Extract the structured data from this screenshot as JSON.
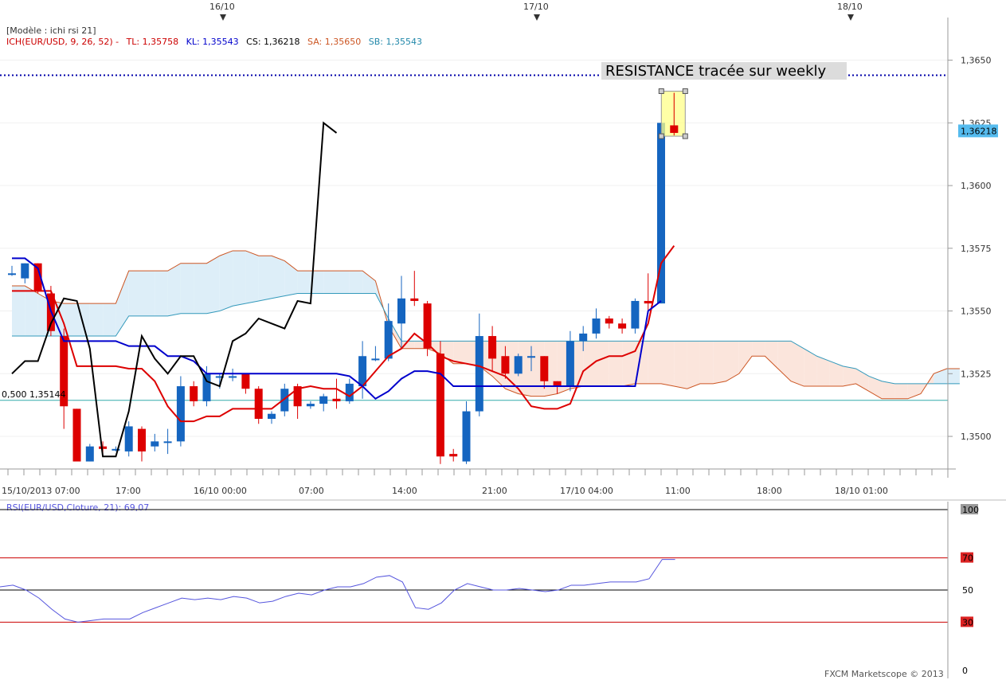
{
  "header": {
    "template": "[Modèle : ichi rsi 21]",
    "ichimoku_label": "ICH(EUR/USD, 9, 26, 52) -",
    "tl": "TL: 1,35758",
    "kl": "KL: 1,35543",
    "cs": "CS: 1,36218",
    "sa": "SA: 1,35650",
    "sb": "SB: 1,35543"
  },
  "date_markers": [
    "16/10",
    "17/10",
    "18/10"
  ],
  "annotation": "RESISTANCE tracée sur weekly",
  "fib_label": "0,500 1,35144",
  "last_price_label": "1,36218",
  "footer": "FXCM Marketscope © 2013",
  "rsi_label": "RSI(EUR/USD,Cloture, 21): 69,07",
  "colors": {
    "bull": "#1565c0",
    "bear": "#dd0000",
    "tenkan": "#dd0000",
    "kijun": "#0000cc",
    "chikou": "#000000",
    "senkou_a": "#cc5522",
    "senkou_b": "#3399bb",
    "cloud_bull": "#ddeef8",
    "cloud_bear": "#fbe5dc",
    "rsi": "#5555dd",
    "resistance": "#0000aa",
    "fib": "#33aaaa"
  },
  "chart_data": [
    {
      "type": "candlestick",
      "instrument": "EUR/USD",
      "x_tick_labels": [
        "15/10/2013 07:00",
        "17:00",
        "16/10 00:00",
        "07:00",
        "14:00",
        "21:00",
        "17/10 04:00",
        "11:00",
        "18:00",
        "18/10 01:00"
      ],
      "y_tick_labels": [
        "1,3500",
        "1,3525",
        "1,3550",
        "1,3575",
        "1,3600",
        "1,3625",
        "1,3650"
      ],
      "ylim": [
        1.3487,
        1.3667
      ],
      "resistance_level": 1.3644,
      "fib_level": 1.35144,
      "last_price": 1.36218,
      "candles": [
        {
          "o": 1.3565,
          "h": 1.3568,
          "l": 1.3564,
          "c": 1.3565
        },
        {
          "o": 1.3563,
          "h": 1.3569,
          "l": 1.3561,
          "c": 1.3569
        },
        {
          "o": 1.3569,
          "h": 1.3569,
          "l": 1.3557,
          "c": 1.3558
        },
        {
          "o": 1.3557,
          "h": 1.356,
          "l": 1.354,
          "c": 1.3542
        },
        {
          "o": 1.354,
          "h": 1.3543,
          "l": 1.3503,
          "c": 1.3512
        },
        {
          "o": 1.3511,
          "h": 1.3511,
          "l": 1.349,
          "c": 1.349
        },
        {
          "o": 1.349,
          "h": 1.3497,
          "l": 1.349,
          "c": 1.3496
        },
        {
          "o": 1.3496,
          "h": 1.3498,
          "l": 1.3493,
          "c": 1.3495
        },
        {
          "o": 1.3495,
          "h": 1.3496,
          "l": 1.3494,
          "c": 1.3495
        },
        {
          "o": 1.3494,
          "h": 1.3506,
          "l": 1.3492,
          "c": 1.3504
        },
        {
          "o": 1.3503,
          "h": 1.3504,
          "l": 1.349,
          "c": 1.3494
        },
        {
          "o": 1.3496,
          "h": 1.3501,
          "l": 1.3494,
          "c": 1.3498
        },
        {
          "o": 1.3498,
          "h": 1.3503,
          "l": 1.3493,
          "c": 1.3498
        },
        {
          "o": 1.3498,
          "h": 1.3524,
          "l": 1.3496,
          "c": 1.352
        },
        {
          "o": 1.352,
          "h": 1.3522,
          "l": 1.3512,
          "c": 1.3514
        },
        {
          "o": 1.3514,
          "h": 1.3528,
          "l": 1.3512,
          "c": 1.3525
        },
        {
          "o": 1.3524,
          "h": 1.3525,
          "l": 1.3519,
          "c": 1.3524
        },
        {
          "o": 1.3524,
          "h": 1.3527,
          "l": 1.3522,
          "c": 1.3524
        },
        {
          "o": 1.3525,
          "h": 1.3525,
          "l": 1.3517,
          "c": 1.3519
        },
        {
          "o": 1.3519,
          "h": 1.352,
          "l": 1.3505,
          "c": 1.3507
        },
        {
          "o": 1.3507,
          "h": 1.351,
          "l": 1.3505,
          "c": 1.3509
        },
        {
          "o": 1.351,
          "h": 1.3521,
          "l": 1.3508,
          "c": 1.3519
        },
        {
          "o": 1.352,
          "h": 1.3521,
          "l": 1.3507,
          "c": 1.3512
        },
        {
          "o": 1.3512,
          "h": 1.3514,
          "l": 1.3511,
          "c": 1.3513
        },
        {
          "o": 1.3513,
          "h": 1.3517,
          "l": 1.351,
          "c": 1.3516
        },
        {
          "o": 1.3515,
          "h": 1.3523,
          "l": 1.3511,
          "c": 1.3514
        },
        {
          "o": 1.3514,
          "h": 1.3523,
          "l": 1.3513,
          "c": 1.3521
        },
        {
          "o": 1.352,
          "h": 1.3538,
          "l": 1.3515,
          "c": 1.3532
        },
        {
          "o": 1.3531,
          "h": 1.3536,
          "l": 1.353,
          "c": 1.3531
        },
        {
          "o": 1.3531,
          "h": 1.3553,
          "l": 1.353,
          "c": 1.3546
        },
        {
          "o": 1.3545,
          "h": 1.3564,
          "l": 1.3535,
          "c": 1.3555
        },
        {
          "o": 1.3555,
          "h": 1.3566,
          "l": 1.3552,
          "c": 1.3554
        },
        {
          "o": 1.3553,
          "h": 1.3554,
          "l": 1.3532,
          "c": 1.3535
        },
        {
          "o": 1.3533,
          "h": 1.3538,
          "l": 1.3489,
          "c": 1.3492
        },
        {
          "o": 1.3493,
          "h": 1.3495,
          "l": 1.349,
          "c": 1.3492
        },
        {
          "o": 1.349,
          "h": 1.3514,
          "l": 1.3489,
          "c": 1.351
        },
        {
          "o": 1.351,
          "h": 1.3549,
          "l": 1.3508,
          "c": 1.354
        },
        {
          "o": 1.354,
          "h": 1.3544,
          "l": 1.3526,
          "c": 1.3531
        },
        {
          "o": 1.3532,
          "h": 1.3536,
          "l": 1.3523,
          "c": 1.3525
        },
        {
          "o": 1.3525,
          "h": 1.3533,
          "l": 1.3524,
          "c": 1.3532
        },
        {
          "o": 1.3532,
          "h": 1.3536,
          "l": 1.3526,
          "c": 1.3532
        },
        {
          "o": 1.3532,
          "h": 1.3532,
          "l": 1.3519,
          "c": 1.3522
        },
        {
          "o": 1.3522,
          "h": 1.3522,
          "l": 1.3517,
          "c": 1.352
        },
        {
          "o": 1.352,
          "h": 1.3542,
          "l": 1.3518,
          "c": 1.3538
        },
        {
          "o": 1.3538,
          "h": 1.3544,
          "l": 1.3534,
          "c": 1.3541
        },
        {
          "o": 1.3541,
          "h": 1.3551,
          "l": 1.3539,
          "c": 1.3547
        },
        {
          "o": 1.3547,
          "h": 1.3548,
          "l": 1.3543,
          "c": 1.3545
        },
        {
          "o": 1.3545,
          "h": 1.3547,
          "l": 1.3541,
          "c": 1.3543
        },
        {
          "o": 1.3543,
          "h": 1.3555,
          "l": 1.3541,
          "c": 1.3554
        },
        {
          "o": 1.3554,
          "h": 1.3565,
          "l": 1.355,
          "c": 1.3553
        },
        {
          "o": 1.3553,
          "h": 1.3625,
          "l": 1.3553,
          "c": 1.3625
        },
        {
          "o": 1.3624,
          "h": 1.3637,
          "l": 1.362,
          "c": 1.3621
        }
      ],
      "tenkan": [
        1.3558,
        1.3558,
        1.3558,
        1.3558,
        1.3545,
        1.3528,
        1.3528,
        1.3528,
        1.3528,
        1.3527,
        1.3527,
        1.3522,
        1.3512,
        1.3506,
        1.3506,
        1.3508,
        1.3508,
        1.3511,
        1.3511,
        1.3511,
        1.3511,
        1.3515,
        1.3519,
        1.352,
        1.3519,
        1.3519,
        1.3516,
        1.352,
        1.3526,
        1.3532,
        1.3535,
        1.3541,
        1.3537,
        1.3532,
        1.353,
        1.3529,
        1.3528,
        1.3526,
        1.3524,
        1.3519,
        1.3512,
        1.3511,
        1.3511,
        1.3513,
        1.3526,
        1.353,
        1.3532,
        1.3532,
        1.3534,
        1.3545,
        1.3569,
        1.3576
      ],
      "kijun": [
        1.3571,
        1.3571,
        1.3567,
        1.355,
        1.3538,
        1.3538,
        1.3538,
        1.3538,
        1.3538,
        1.3536,
        1.3536,
        1.3536,
        1.3532,
        1.3532,
        1.353,
        1.3525,
        1.3525,
        1.3525,
        1.3525,
        1.3525,
        1.3525,
        1.3525,
        1.3525,
        1.3525,
        1.3525,
        1.3525,
        1.3524,
        1.352,
        1.3515,
        1.3518,
        1.3523,
        1.3526,
        1.3526,
        1.3525,
        1.352,
        1.352,
        1.352,
        1.352,
        1.352,
        1.352,
        1.352,
        1.352,
        1.352,
        1.352,
        1.352,
        1.352,
        1.352,
        1.352,
        1.352,
        1.355,
        1.3554
      ],
      "chikou": [
        1.3525,
        1.353,
        1.353,
        1.3545,
        1.3555,
        1.3554,
        1.3535,
        1.3492,
        1.3492,
        1.351,
        1.354,
        1.3531,
        1.3525,
        1.3532,
        1.3532,
        1.3522,
        1.352,
        1.3538,
        1.3541,
        1.3547,
        1.3545,
        1.3543,
        1.3554,
        1.3553,
        1.3625,
        1.3621
      ],
      "senkou_a": [
        1.356,
        1.356,
        1.3557,
        1.3554,
        1.3553,
        1.3553,
        1.3553,
        1.3553,
        1.3553,
        1.3566,
        1.3566,
        1.3566,
        1.3566,
        1.3569,
        1.3569,
        1.3569,
        1.3572,
        1.3574,
        1.3574,
        1.3572,
        1.3572,
        1.357,
        1.3566,
        1.3566,
        1.3566,
        1.3566,
        1.3566,
        1.3566,
        1.3562,
        1.3544,
        1.3535,
        1.3535,
        1.3535,
        1.3533,
        1.3529,
        1.3529,
        1.3528,
        1.3524,
        1.3519,
        1.3517,
        1.3516,
        1.3516,
        1.3517,
        1.3519,
        1.352,
        1.352,
        1.352,
        1.352,
        1.3521,
        1.3521,
        1.3521,
        1.352,
        1.3519,
        1.3521,
        1.3521,
        1.3522,
        1.3525,
        1.3532,
        1.3532,
        1.3527,
        1.3522,
        1.352,
        1.352,
        1.352,
        1.352,
        1.3521,
        1.3518,
        1.3515,
        1.3515,
        1.3515,
        1.3517,
        1.3525,
        1.3527,
        1.3527
      ],
      "senkou_b": [
        1.354,
        1.354,
        1.354,
        1.354,
        1.354,
        1.354,
        1.354,
        1.354,
        1.354,
        1.3548,
        1.3548,
        1.3548,
        1.3548,
        1.3549,
        1.3549,
        1.3549,
        1.355,
        1.3552,
        1.3553,
        1.3554,
        1.3555,
        1.3556,
        1.3557,
        1.3557,
        1.3557,
        1.3557,
        1.3557,
        1.3557,
        1.3557,
        1.3547,
        1.3538,
        1.3538,
        1.3538,
        1.3538,
        1.3538,
        1.3538,
        1.3538,
        1.3538,
        1.3538,
        1.3538,
        1.3538,
        1.3538,
        1.3538,
        1.3538,
        1.3538,
        1.3538,
        1.3538,
        1.3538,
        1.3538,
        1.3538,
        1.3538,
        1.3538,
        1.3538,
        1.3538,
        1.3538,
        1.3538,
        1.3538,
        1.3538,
        1.3538,
        1.3538,
        1.3538,
        1.3535,
        1.3532,
        1.353,
        1.3528,
        1.3527,
        1.3524,
        1.3522,
        1.3521,
        1.3521,
        1.3521,
        1.3521,
        1.3521,
        1.3521
      ]
    },
    {
      "type": "line",
      "indicator": "RSI",
      "y_tick_labels": [
        "0",
        "30",
        "50",
        "70",
        "100"
      ],
      "ylim": [
        0,
        100
      ],
      "levels": [
        30,
        50,
        70,
        100
      ],
      "values": [
        52,
        53,
        50,
        45,
        38,
        32,
        30,
        31,
        32,
        32,
        32,
        36,
        39,
        42,
        45,
        44,
        45,
        44,
        46,
        45,
        42,
        43,
        46,
        48,
        47,
        50,
        52,
        52,
        54,
        58,
        59,
        55,
        39,
        38,
        42,
        50,
        54,
        52,
        50,
        50,
        51,
        50,
        49,
        50,
        53,
        53,
        54,
        55,
        55,
        55,
        57,
        69,
        69
      ]
    }
  ]
}
